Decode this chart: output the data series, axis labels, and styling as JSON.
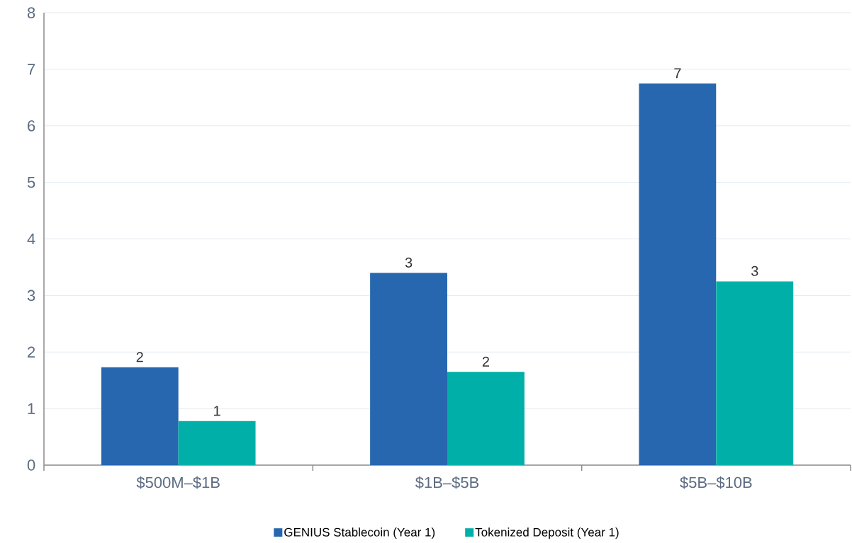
{
  "chart_data": {
    "type": "bar",
    "categories": [
      "$500M–$1B",
      "$1B–$5B",
      "$5B–$10B"
    ],
    "series": [
      {
        "name": "GENIUS Stablecoin (Year 1)",
        "color": "#2767b0",
        "values": [
          1.73,
          3.4,
          6.75
        ],
        "value_labels": [
          "2",
          "3",
          "7"
        ]
      },
      {
        "name": "Tokenized Deposit (Year 1)",
        "color": "#00b0a8",
        "values": [
          0.78,
          1.65,
          3.25
        ],
        "value_labels": [
          "1",
          "2",
          "3"
        ]
      }
    ],
    "ylim": [
      0,
      8
    ],
    "yticks": [
      0,
      1,
      2,
      3,
      4,
      5,
      6,
      7,
      8
    ],
    "grid": "y",
    "legend": "bottom"
  }
}
